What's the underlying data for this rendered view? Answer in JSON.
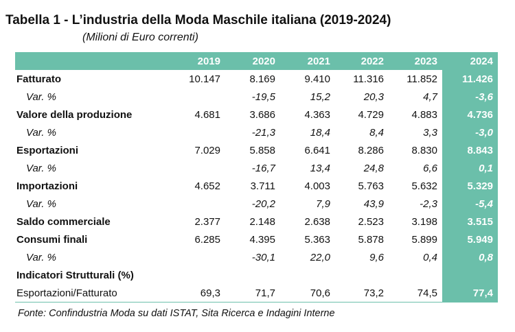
{
  "title": "Tabella 1 - L’industria della Moda Maschile italiana (2019-2024)",
  "subtitle": "(Milioni di Euro correnti)",
  "accent_color": "#6bbfaa",
  "years": [
    "2019",
    "2020",
    "2021",
    "2022",
    "2023",
    "2024"
  ],
  "rows": [
    {
      "label": "Fatturato",
      "values": [
        "10.147",
        "8.169",
        "9.410",
        "11.316",
        "11.852",
        "11.426"
      ]
    },
    {
      "label": "Var. %",
      "values": [
        "",
        "-19,5",
        "15,2",
        "20,3",
        "4,7",
        "-3,6"
      ]
    },
    {
      "label": "Valore della produzione",
      "values": [
        "4.681",
        "3.686",
        "4.363",
        "4.729",
        "4.883",
        "4.736"
      ]
    },
    {
      "label": "Var. %",
      "values": [
        "",
        "-21,3",
        "18,4",
        "8,4",
        "3,3",
        "-3,0"
      ]
    },
    {
      "label": "Esportazioni",
      "values": [
        "7.029",
        "5.858",
        "6.641",
        "8.286",
        "8.830",
        "8.843"
      ]
    },
    {
      "label": "Var. %",
      "values": [
        "",
        "-16,7",
        "13,4",
        "24,8",
        "6,6",
        "0,1"
      ]
    },
    {
      "label": "Importazioni",
      "values": [
        "4.652",
        "3.711",
        "4.003",
        "5.763",
        "5.632",
        "5.329"
      ]
    },
    {
      "label": "Var. %",
      "values": [
        "",
        "-20,2",
        "7,9",
        "43,9",
        "-2,3",
        "-5,4"
      ]
    },
    {
      "label": "Saldo commerciale",
      "values": [
        "2.377",
        "2.148",
        "2.638",
        "2.523",
        "3.198",
        "3.515"
      ]
    },
    {
      "label": "Consumi finali",
      "values": [
        "6.285",
        "4.395",
        "5.363",
        "5.878",
        "5.899",
        "5.949"
      ]
    },
    {
      "label": "Var. %",
      "values": [
        "",
        "-30,1",
        "22,0",
        "9,6",
        "0,4",
        "0,8"
      ]
    },
    {
      "label": "Indicatori Strutturali (%)",
      "values": [
        "",
        "",
        "",
        "",
        "",
        ""
      ]
    },
    {
      "label": "Esportazioni/Fatturato",
      "values": [
        "69,3",
        "71,7",
        "70,6",
        "73,2",
        "74,5",
        "77,4"
      ]
    }
  ],
  "source": "Fonte: Confindustria Moda su dati ISTAT, Sita Ricerca e Indagini Interne"
}
